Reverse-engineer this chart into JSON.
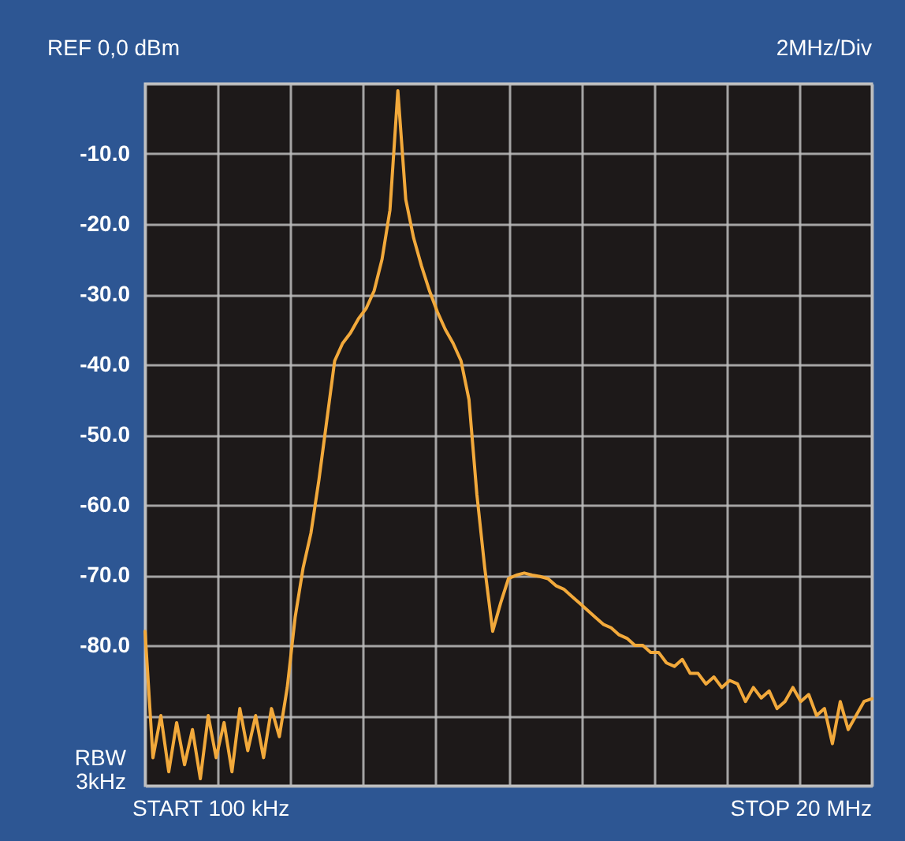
{
  "chart_data": {
    "type": "line",
    "title": "REF 0,0 dBm",
    "annotations": [
      "2MHz/Div",
      "RBW\n3kHz",
      "START 100 kHz",
      "STOP 20 MHz"
    ],
    "categories": [
      null,
      null,
      null,
      null,
      null,
      null,
      null,
      null,
      null,
      null,
      null,
      null,
      null,
      null,
      null,
      null,
      null,
      null,
      null,
      null,
      null,
      null,
      null,
      null,
      null,
      null,
      null,
      null,
      null,
      null,
      null,
      null,
      null,
      null,
      null,
      null,
      null,
      null,
      null,
      null,
      null,
      null,
      null,
      null,
      null,
      null,
      null,
      null,
      null,
      null,
      null,
      null,
      null,
      null,
      null,
      null,
      null,
      null,
      null,
      null,
      null,
      null,
      null,
      null,
      null,
      null,
      null,
      null,
      null,
      null,
      null,
      null,
      null,
      null,
      null,
      null,
      null,
      null,
      null,
      null,
      null,
      null,
      null,
      null,
      null,
      null,
      null,
      null,
      null,
      null,
      null,
      null,
      null
    ],
    "series": [
      {
        "color": "#f2a93b",
        "values": [
          -78,
          -96,
          -90,
          -98,
          -91,
          -97,
          -92,
          -99,
          -90,
          -96,
          -91,
          -98,
          -89,
          -95,
          -90,
          -96,
          -89,
          -93,
          -86,
          -76,
          -69,
          -64,
          -56.5,
          -48,
          -39.5,
          -37,
          -35.5,
          -33.5,
          -32,
          -29.5,
          -25,
          -18,
          -1,
          -16.5,
          -22,
          -26,
          -29.5,
          -32.5,
          -35,
          -37,
          -39.5,
          -45,
          -58.5,
          -69,
          -78,
          -74,
          -70.5,
          -70,
          -69.7,
          -70,
          -70.2,
          -70.5,
          -71.5,
          -72,
          -73,
          -74,
          -75,
          -76,
          -77,
          -77.5,
          -78.5,
          -79,
          -80,
          -80,
          -81,
          -81,
          -82.5,
          -83,
          -82,
          -84,
          -84,
          -85.5,
          -84.5,
          -86,
          -85,
          -85.5,
          -88,
          -86,
          -87.5,
          -86.5,
          -89,
          -88,
          -86,
          -88,
          -87,
          -90,
          -89,
          -94,
          -88,
          -92,
          -90,
          -88,
          -87.6
        ]
      }
    ],
    "ylim": [
      -100,
      0
    ],
    "yticks": [
      {
        "value": 0,
        "label": null
      },
      {
        "value": -10,
        "label": "-10.0"
      },
      {
        "value": -20,
        "label": "-20.0"
      },
      {
        "value": -30,
        "label": "-30.0"
      },
      {
        "value": -40,
        "label": "-40.0"
      },
      {
        "value": -50,
        "label": "-50.0"
      },
      {
        "value": -60,
        "label": "-60.0"
      },
      {
        "value": -70,
        "label": "-70.0"
      },
      {
        "value": -80,
        "label": "-80.0"
      },
      {
        "value": -90,
        "label": null
      },
      {
        "value": -100,
        "label": null
      }
    ],
    "tick_labels": "y",
    "grid": true,
    "legend": false,
    "line_style": "solid",
    "marker": "none"
  }
}
